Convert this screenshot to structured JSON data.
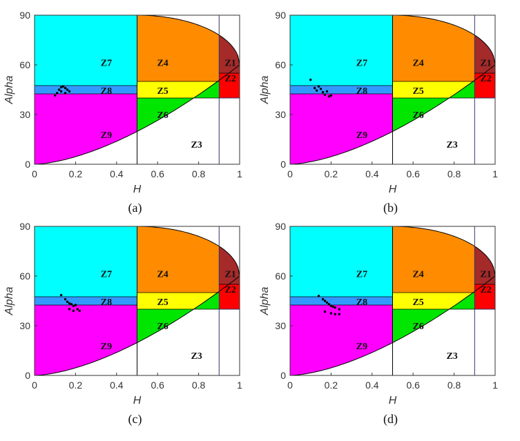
{
  "colors": {
    "Z1": "#a52a2a",
    "Z2": "#ff0000",
    "Z3": "#ffffff",
    "Z4": "#ff8c00",
    "Z5": "#ffff00",
    "Z6": "#00e600",
    "Z7": "#00ffff",
    "Z8": "#3399ff",
    "Z9": "#ff00ff",
    "points": "#000000",
    "boundary": "#000000",
    "guide": "#333366"
  },
  "chart_data": [
    {
      "type": "scatter",
      "caption": "(a)",
      "xlabel": "H",
      "ylabel": "Alpha",
      "xlim": [
        0,
        1
      ],
      "ylim": [
        0,
        90
      ],
      "xticks": [
        "0",
        "0.2",
        "0.4",
        "0.6",
        "0.8",
        "1"
      ],
      "yticks": [
        "0",
        "30",
        "60",
        "90"
      ],
      "zone_labels": [
        "Z1",
        "Z2",
        "Z3",
        "Z4",
        "Z5",
        "Z6",
        "Z7",
        "Z8",
        "Z9"
      ],
      "points": [
        [
          0.1,
          41.5
        ],
        [
          0.11,
          43
        ],
        [
          0.12,
          45
        ],
        [
          0.13,
          46.5
        ],
        [
          0.14,
          47
        ],
        [
          0.15,
          46
        ],
        [
          0.16,
          45
        ],
        [
          0.17,
          44
        ],
        [
          0.15,
          43
        ],
        [
          0.13,
          44
        ]
      ]
    },
    {
      "type": "scatter",
      "caption": "(b)",
      "xlabel": "H",
      "ylabel": "Alpha",
      "xlim": [
        0,
        1
      ],
      "ylim": [
        0,
        90
      ],
      "xticks": [
        "0",
        "0.2",
        "0.4",
        "0.6",
        "0.8",
        "1"
      ],
      "yticks": [
        "0",
        "30",
        "60",
        "90"
      ],
      "zone_labels": [
        "Z1",
        "Z2",
        "Z3",
        "Z4",
        "Z5",
        "Z6",
        "Z7",
        "Z8",
        "Z9"
      ],
      "points": [
        [
          0.1,
          51
        ],
        [
          0.12,
          46
        ],
        [
          0.13,
          44.5
        ],
        [
          0.14,
          47
        ],
        [
          0.15,
          45.5
        ],
        [
          0.16,
          43.5
        ],
        [
          0.17,
          42
        ],
        [
          0.18,
          44
        ],
        [
          0.19,
          41
        ],
        [
          0.2,
          41.5
        ]
      ]
    },
    {
      "type": "scatter",
      "caption": "(c)",
      "xlabel": "H",
      "ylabel": "Alpha",
      "xlim": [
        0,
        1
      ],
      "ylim": [
        0,
        90
      ],
      "xticks": [
        "0",
        "0.2",
        "0.4",
        "0.6",
        "0.8",
        "1"
      ],
      "yticks": [
        "0",
        "30",
        "60",
        "90"
      ],
      "zone_labels": [
        "Z1",
        "Z2",
        "Z3",
        "Z4",
        "Z5",
        "Z6",
        "Z7",
        "Z8",
        "Z9"
      ],
      "points": [
        [
          0.13,
          48.5
        ],
        [
          0.15,
          46
        ],
        [
          0.16,
          44.5
        ],
        [
          0.17,
          43.5
        ],
        [
          0.18,
          43
        ],
        [
          0.19,
          42
        ],
        [
          0.2,
          42.5
        ],
        [
          0.21,
          40
        ],
        [
          0.17,
          40
        ],
        [
          0.19,
          39
        ],
        [
          0.22,
          39
        ]
      ]
    },
    {
      "type": "scatter",
      "caption": "(d)",
      "xlabel": "H",
      "ylabel": "Alpha",
      "xlim": [
        0,
        1
      ],
      "ylim": [
        0,
        90
      ],
      "xticks": [
        "0",
        "0.2",
        "0.4",
        "0.6",
        "0.8",
        "1"
      ],
      "yticks": [
        "0",
        "30",
        "60",
        "90"
      ],
      "zone_labels": [
        "Z1",
        "Z2",
        "Z3",
        "Z4",
        "Z5",
        "Z6",
        "Z7",
        "Z8",
        "Z9"
      ],
      "points": [
        [
          0.14,
          48
        ],
        [
          0.16,
          46
        ],
        [
          0.17,
          45
        ],
        [
          0.18,
          44
        ],
        [
          0.19,
          43
        ],
        [
          0.2,
          42
        ],
        [
          0.21,
          41.5
        ],
        [
          0.22,
          41
        ],
        [
          0.24,
          40
        ],
        [
          0.17,
          38.5
        ],
        [
          0.2,
          37.5
        ],
        [
          0.22,
          37
        ],
        [
          0.24,
          37
        ]
      ]
    }
  ]
}
